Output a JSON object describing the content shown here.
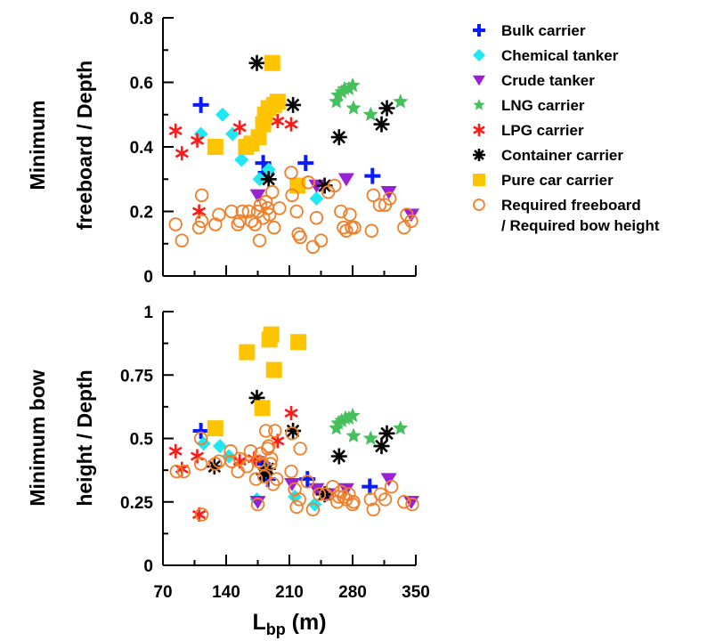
{
  "chart_data": [
    {
      "type": "scatter",
      "ylabel": [
        "Minimum",
        "freeboard / Depth"
      ],
      "ylim": [
        0,
        0.8
      ],
      "yticks": [
        "0",
        "0.2",
        "0.4",
        "0.6",
        "0.8"
      ],
      "xlim": [
        70,
        350
      ],
      "grid": false,
      "series": [
        {
          "name": "Bulk carrier",
          "marker": "plus",
          "color": "#0a1cff",
          "points": [
            [
              112,
              0.53
            ],
            [
              181,
              0.35
            ],
            [
              184,
              0.32
            ],
            [
              228,
              0.35
            ],
            [
              302,
              0.31
            ]
          ]
        },
        {
          "name": "Chemical tanker",
          "marker": "diamond",
          "color": "#1fe8f2",
          "points": [
            [
              112,
              0.44
            ],
            [
              136,
              0.5
            ],
            [
              147,
              0.44
            ],
            [
              157,
              0.36
            ],
            [
              177,
              0.3
            ],
            [
              187,
              0.33
            ],
            [
              219,
              0.28
            ],
            [
              240,
              0.24
            ]
          ]
        },
        {
          "name": "Crude tanker",
          "marker": "triangle-down",
          "color": "#9a1fd6",
          "points": [
            [
              175,
              0.25
            ],
            [
              240,
              0.28
            ],
            [
              273,
              0.3
            ],
            [
              320,
              0.26
            ],
            [
              345,
              0.19
            ]
          ]
        },
        {
          "name": "LNG carrier",
          "marker": "star",
          "color": "#45c05a",
          "points": [
            [
              262,
              0.54
            ],
            [
              264,
              0.56
            ],
            [
              268,
              0.57
            ],
            [
              271,
              0.58
            ],
            [
              276,
              0.58
            ],
            [
              280,
              0.59
            ],
            [
              281,
              0.52
            ],
            [
              300,
              0.5
            ],
            [
              333,
              0.54
            ]
          ]
        },
        {
          "name": "LPG carrier",
          "marker": "asterisk",
          "color": "#ff1a1a",
          "points": [
            [
              84,
              0.45
            ],
            [
              91,
              0.38
            ],
            [
              108,
              0.42
            ],
            [
              110,
              0.2
            ],
            [
              155,
              0.46
            ],
            [
              166,
              0.4
            ],
            [
              171,
              0.42
            ],
            [
              197,
              0.48
            ],
            [
              212,
              0.47
            ]
          ]
        },
        {
          "name": "Container carrier",
          "marker": "asterisk8",
          "color": "#000000",
          "points": [
            [
              174,
              0.66
            ],
            [
              187,
              0.3
            ],
            [
              214,
              0.53
            ],
            [
              249,
              0.28
            ],
            [
              265,
              0.43
            ],
            [
              312,
              0.47
            ],
            [
              318,
              0.52
            ]
          ]
        },
        {
          "name": "Pure car carrier",
          "marker": "square",
          "color": "#ffc400",
          "points": [
            [
              128,
              0.4
            ],
            [
              162,
              0.4
            ],
            [
              168,
              0.41
            ],
            [
              176,
              0.43
            ],
            [
              181,
              0.47
            ],
            [
              183,
              0.5
            ],
            [
              187,
              0.52
            ],
            [
              191,
              0.66
            ],
            [
              193,
              0.53
            ],
            [
              197,
              0.54
            ],
            [
              219,
              0.28
            ]
          ]
        },
        {
          "name": "Required freeboard / Required bow height",
          "marker": "circle",
          "color": "#f07f2a",
          "points": [
            [
              84,
              0.16
            ],
            [
              91,
              0.11
            ],
            [
              110,
              0.15
            ],
            [
              113,
              0.25
            ],
            [
              113,
              0.17
            ],
            [
              128,
              0.16
            ],
            [
              132,
              0.19
            ],
            [
              146,
              0.2
            ],
            [
              153,
              0.16
            ],
            [
              155,
              0.17
            ],
            [
              158,
              0.2
            ],
            [
              165,
              0.2
            ],
            [
              168,
              0.17
            ],
            [
              172,
              0.16
            ],
            [
              177,
              0.11
            ],
            [
              175,
              0.2
            ],
            [
              178,
              0.22
            ],
            [
              181,
              0.18
            ],
            [
              184,
              0.23
            ],
            [
              186,
              0.21
            ],
            [
              188,
              0.19
            ],
            [
              191,
              0.26
            ],
            [
              193,
              0.15
            ],
            [
              199,
              0.21
            ],
            [
              212,
              0.32
            ],
            [
              213,
              0.25
            ],
            [
              218,
              0.2
            ],
            [
              222,
              0.12
            ],
            [
              220,
              0.13
            ],
            [
              231,
              0.29
            ],
            [
              236,
              0.09
            ],
            [
              240,
              0.18
            ],
            [
              245,
              0.11
            ],
            [
              253,
              0.26
            ],
            [
              260,
              0.28
            ],
            [
              267,
              0.2
            ],
            [
              270,
              0.15
            ],
            [
              273,
              0.14
            ],
            [
              277,
              0.19
            ],
            [
              279,
              0.15
            ],
            [
              282,
              0.15
            ],
            [
              301,
              0.14
            ],
            [
              303,
              0.25
            ],
            [
              310,
              0.22
            ],
            [
              316,
              0.22
            ],
            [
              321,
              0.24
            ],
            [
              337,
              0.15
            ],
            [
              340,
              0.19
            ],
            [
              345,
              0.17
            ]
          ]
        }
      ]
    },
    {
      "type": "scatter",
      "ylabel": [
        "Minimum bow",
        "height / Depth"
      ],
      "xlabel_main": "L",
      "xlabel_sub": "bp",
      "xlabel_tail": " (m)",
      "ylim": [
        0,
        1
      ],
      "yticks": [
        "0",
        "0.25",
        "0.5",
        "0.75",
        "1"
      ],
      "xlim": [
        70,
        350
      ],
      "xticks": [
        70,
        140,
        210,
        280,
        350
      ],
      "grid": false,
      "series": [
        {
          "name": "Bulk carrier",
          "marker": "plus",
          "color": "#0a1cff",
          "points": [
            [
              112,
              0.53
            ],
            [
              180,
              0.4
            ],
            [
              186,
              0.34
            ],
            [
              230,
              0.34
            ],
            [
              299,
              0.31
            ]
          ]
        },
        {
          "name": "Chemical tanker",
          "marker": "diamond",
          "color": "#1fe8f2",
          "points": [
            [
              115,
              0.48
            ],
            [
              133,
              0.47
            ],
            [
              143,
              0.43
            ],
            [
              174,
              0.26
            ],
            [
              184,
              0.37
            ],
            [
              216,
              0.27
            ],
            [
              238,
              0.24
            ]
          ]
        },
        {
          "name": "Crude tanker",
          "marker": "triangle-down",
          "color": "#9a1fd6",
          "points": [
            [
              175,
              0.25
            ],
            [
              213,
              0.32
            ],
            [
              240,
              0.3
            ],
            [
              252,
              0.28
            ],
            [
              273,
              0.3
            ],
            [
              320,
              0.34
            ],
            [
              345,
              0.25
            ]
          ]
        },
        {
          "name": "LNG carrier",
          "marker": "star",
          "color": "#45c05a",
          "points": [
            [
              262,
              0.54
            ],
            [
              264,
              0.56
            ],
            [
              268,
              0.57
            ],
            [
              272,
              0.58
            ],
            [
              276,
              0.58
            ],
            [
              280,
              0.59
            ],
            [
              281,
              0.51
            ],
            [
              300,
              0.5
            ],
            [
              333,
              0.54
            ]
          ]
        },
        {
          "name": "LPG carrier",
          "marker": "asterisk",
          "color": "#ff1a1a",
          "points": [
            [
              84,
              0.45
            ],
            [
              91,
              0.38
            ],
            [
              108,
              0.43
            ],
            [
              110,
              0.2
            ],
            [
              155,
              0.41
            ],
            [
              171,
              0.42
            ],
            [
              197,
              0.49
            ],
            [
              212,
              0.6
            ]
          ]
        },
        {
          "name": "Container carrier",
          "marker": "asterisk8",
          "color": "#000000",
          "points": [
            [
              127,
              0.39
            ],
            [
              174,
              0.66
            ],
            [
              182,
              0.36
            ],
            [
              186,
              0.38
            ],
            [
              214,
              0.53
            ],
            [
              249,
              0.28
            ],
            [
              265,
              0.43
            ],
            [
              312,
              0.47
            ],
            [
              318,
              0.52
            ]
          ]
        },
        {
          "name": "Pure car carrier",
          "marker": "square",
          "color": "#ffc400",
          "points": [
            [
              128,
              0.54
            ],
            [
              163,
              0.84
            ],
            [
              180,
              0.62
            ],
            [
              188,
              0.89
            ],
            [
              190,
              0.91
            ],
            [
              193,
              0.77
            ],
            [
              220,
              0.88
            ]
          ]
        },
        {
          "name": "Required freeboard / Required bow height",
          "marker": "circle",
          "color": "#f07f2a",
          "points": [
            [
              85,
              0.37
            ],
            [
              93,
              0.37
            ],
            [
              112,
              0.4
            ],
            [
              112,
              0.5
            ],
            [
              113,
              0.2
            ],
            [
              128,
              0.4
            ],
            [
              132,
              0.41
            ],
            [
              145,
              0.45
            ],
            [
              146,
              0.41
            ],
            [
              153,
              0.37
            ],
            [
              155,
              0.42
            ],
            [
              163,
              0.39
            ],
            [
              167,
              0.45
            ],
            [
              173,
              0.34
            ],
            [
              175,
              0.24
            ],
            [
              176,
              0.41
            ],
            [
              178,
              0.44
            ],
            [
              180,
              0.4
            ],
            [
              182,
              0.35
            ],
            [
              184,
              0.53
            ],
            [
              186,
              0.46
            ],
            [
              187,
              0.47
            ],
            [
              189,
              0.4
            ],
            [
              190,
              0.42
            ],
            [
              192,
              0.32
            ],
            [
              194,
              0.53
            ],
            [
              196,
              0.34
            ],
            [
              212,
              0.37
            ],
            [
              213,
              0.52
            ],
            [
              216,
              0.3
            ],
            [
              218,
              0.23
            ],
            [
              221,
              0.26
            ],
            [
              222,
              0.46
            ],
            [
              230,
              0.33
            ],
            [
              236,
              0.22
            ],
            [
              243,
              0.28
            ],
            [
              250,
              0.28
            ],
            [
              258,
              0.31
            ],
            [
              263,
              0.25
            ],
            [
              265,
              0.27
            ],
            [
              267,
              0.29
            ],
            [
              270,
              0.27
            ],
            [
              273,
              0.26
            ],
            [
              276,
              0.28
            ],
            [
              280,
              0.24
            ],
            [
              281,
              0.25
            ],
            [
              300,
              0.26
            ],
            [
              303,
              0.22
            ],
            [
              311,
              0.28
            ],
            [
              316,
              0.26
            ],
            [
              323,
              0.31
            ],
            [
              337,
              0.25
            ],
            [
              346,
              0.24
            ]
          ]
        }
      ]
    }
  ],
  "legend": {
    "items": [
      {
        "marker": "plus",
        "color": "#0a1cff",
        "lines": [
          "Bulk carrier"
        ]
      },
      {
        "marker": "diamond",
        "color": "#1fe8f2",
        "lines": [
          "Chemical tanker"
        ]
      },
      {
        "marker": "triangle-down",
        "color": "#9a1fd6",
        "lines": [
          "Crude tanker"
        ]
      },
      {
        "marker": "star",
        "color": "#45c05a",
        "lines": [
          "LNG carrier"
        ]
      },
      {
        "marker": "asterisk",
        "color": "#ff1a1a",
        "lines": [
          "LPG carrier"
        ]
      },
      {
        "marker": "asterisk8",
        "color": "#000000",
        "lines": [
          "Container carrier"
        ]
      },
      {
        "marker": "square",
        "color": "#ffc400",
        "lines": [
          "Pure car carrier"
        ]
      },
      {
        "marker": "circle",
        "color": "#f07f2a",
        "lines": [
          "Required freeboard",
          "/ Required bow height"
        ]
      }
    ]
  }
}
